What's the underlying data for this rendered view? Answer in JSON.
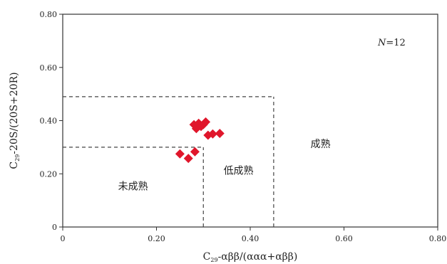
{
  "chart_data": {
    "type": "scatter",
    "xlabel": {
      "prefix": "C",
      "sub": "29",
      "rest": "-αββ/(ααα+αββ)"
    },
    "ylabel": {
      "prefix": "C",
      "sub": "29",
      "rest": "-20S/(20S+20R)"
    },
    "xlim": [
      0,
      0.8
    ],
    "ylim": [
      0,
      0.8
    ],
    "x_ticks": [
      "0",
      "0.20",
      "0.40",
      "0.60",
      "0.80"
    ],
    "y_ticks": [
      "0",
      "0.20",
      "0.40",
      "0.60",
      "0.80"
    ],
    "grid": false,
    "marker_color": "#e0162b",
    "annotation": {
      "n_symbol": "N",
      "n_value": "=12"
    },
    "regions": [
      {
        "name": "未成熟",
        "x": 0.15,
        "y": 0.14
      },
      {
        "name": "低成熟",
        "x": 0.375,
        "y": 0.2
      },
      {
        "name": "成熟",
        "x": 0.55,
        "y": 0.3
      }
    ],
    "boundaries": [
      {
        "type": "h",
        "y": 0.3,
        "x0": 0,
        "x1": 0.3
      },
      {
        "type": "v",
        "x": 0.3,
        "y0": 0,
        "y1": 0.3
      },
      {
        "type": "h",
        "y": 0.49,
        "x0": 0,
        "x1": 0.45
      },
      {
        "type": "v",
        "x": 0.45,
        "y0": 0,
        "y1": 0.49
      }
    ],
    "points": [
      {
        "x": 0.25,
        "y": 0.275
      },
      {
        "x": 0.268,
        "y": 0.258
      },
      {
        "x": 0.282,
        "y": 0.283
      },
      {
        "x": 0.28,
        "y": 0.385
      },
      {
        "x": 0.285,
        "y": 0.37
      },
      {
        "x": 0.29,
        "y": 0.39
      },
      {
        "x": 0.295,
        "y": 0.378
      },
      {
        "x": 0.3,
        "y": 0.385
      },
      {
        "x": 0.305,
        "y": 0.395
      },
      {
        "x": 0.31,
        "y": 0.345
      },
      {
        "x": 0.32,
        "y": 0.35
      },
      {
        "x": 0.335,
        "y": 0.352
      }
    ]
  }
}
